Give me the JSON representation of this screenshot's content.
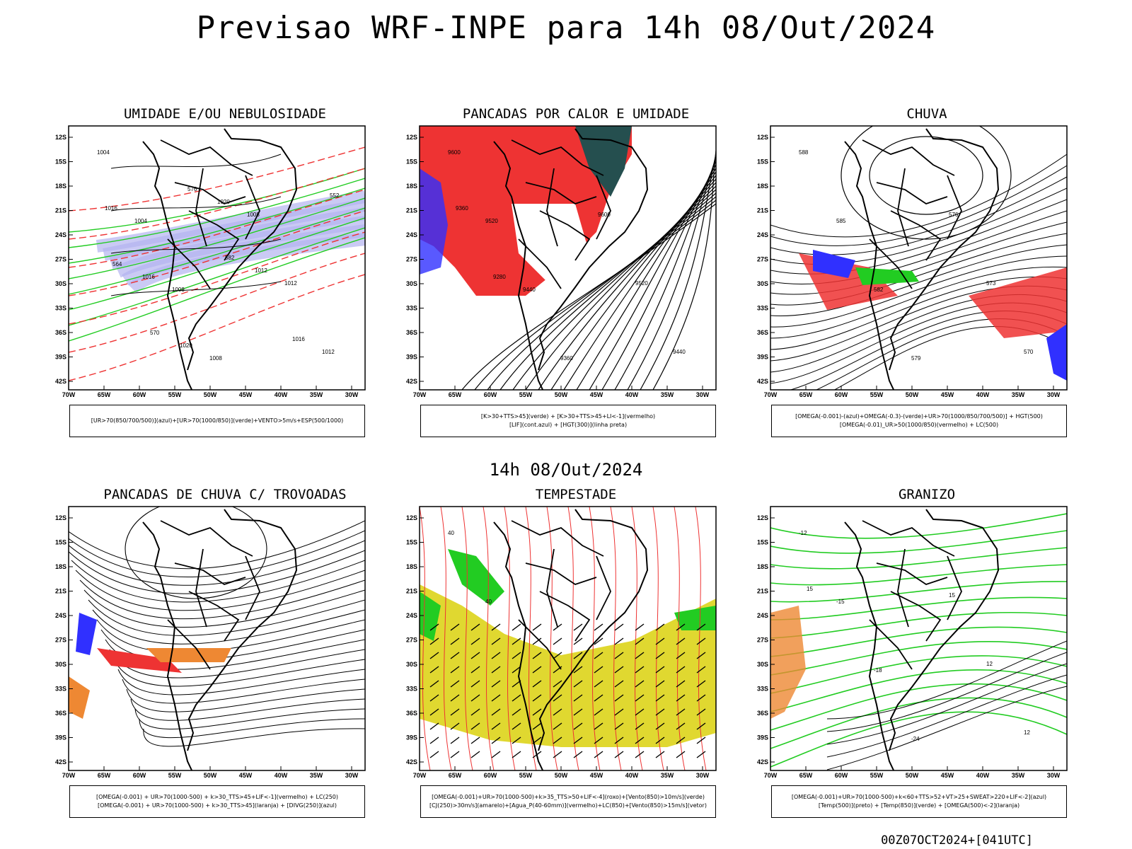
{
  "header": {
    "main_title": "Previsao WRF-INPE  para 14h 08/Out/2024",
    "mid_title": "14h 08/Out/2024",
    "footer": "00Z07OCT2024+[041UTC]"
  },
  "axes": {
    "lat_ticks": [
      "12S",
      "15S",
      "18S",
      "21S",
      "24S",
      "27S",
      "30S",
      "33S",
      "36S",
      "39S",
      "42S"
    ],
    "lon_ticks": [
      "70W",
      "65W",
      "60W",
      "55W",
      "50W",
      "45W",
      "40W",
      "35W",
      "30W"
    ]
  },
  "colors": {
    "blue": "#3030ff",
    "lavender": "#b4b4f0",
    "green": "#22cc22",
    "red": "#ee3333",
    "dark_teal": "#254f4f",
    "orange": "#ee8833",
    "yellow": "#e0d830",
    "black": "#000000"
  },
  "panels": [
    {
      "id": "umidade",
      "title": "UMIDADE E/OU NEBULOSIDADE",
      "legend": [
        "[UR>70(850/700/500)](azul)+[UR>70(1000/850)](verde)+VENTO>5m/s+ESP(500/1000)"
      ],
      "contour_labels": [
        "1004",
        "1004",
        "1008",
        "1008",
        "1008",
        "1012",
        "1012",
        "1016",
        "1016",
        "1020",
        "1020",
        "1012",
        "1016",
        "552",
        "564",
        "570",
        "576",
        "582"
      ]
    },
    {
      "id": "pancadas-calor",
      "title": "PANCADAS POR CALOR E UMIDADE",
      "legend": [
        "[K>30+TTS>45](verde) + [K>30+TTS>45+LI<-1](vermelho)",
        "[LIF](cont.azul) + [HGT(300)](linha preta)"
      ],
      "contour_labels": [
        "9600",
        "9520",
        "9440",
        "9360",
        "9600",
        "9520",
        "9440",
        "9360",
        "9280"
      ]
    },
    {
      "id": "chuva",
      "title": "CHUVA",
      "legend": [
        "[OMEGA(-0.001)-(azul)+OMEGA(-0.3)-(verde)+UR>70(1000/850/700/500)] + HGT(500)",
        "[OMEGA(-0.01)_UR>50(1000/850)(vermelho) + LC(500)"
      ],
      "contour_labels": [
        "588",
        "585",
        "582",
        "579",
        "576",
        "573",
        "570"
      ]
    },
    {
      "id": "trovoadas",
      "title": "PANCADAS DE CHUVA C/ TROVOADAS",
      "legend": [
        "[OMEGA(-0.001) + UR>70(1000-500) + k>30_TTS>45+LIF<-1](vermelho) + LC(250)",
        "[OMEGA(-0.001) + UR>70(1000-500) + k>30_TTS>45](laranja) + [DIVG(250)](azul)"
      ],
      "contour_labels": []
    },
    {
      "id": "tempestade",
      "title": "TEMPESTADE",
      "legend": [
        "[OMEGA(-0.001)+UR>70(1000-500)+k>35_TTS>50+LIF<-4](roxo)+[Vento(850)>10m/s](verde)",
        "[CJ(250)>30m/s](amarelo)+[Agua_P(40-60mm)](vermelho)+LC(850)+[Vento(850)>15m/s](vetor)"
      ],
      "contour_labels": [
        "40",
        "40"
      ]
    },
    {
      "id": "granizo",
      "title": "GRANIZO",
      "legend": [
        "[OMEGA(-0.001)+UR>70(1000-500)+k<60+TTS>52+VT>25+SWEAT>220+LIF<-2](azul)",
        "[Temp(500)](preto) + [Temp(850)](verde) + [OMEGA(500)<-2](laranja)"
      ],
      "contour_labels": [
        "-12",
        "-15",
        "-18",
        "-24",
        "15",
        "12",
        "12",
        "15"
      ]
    }
  ]
}
